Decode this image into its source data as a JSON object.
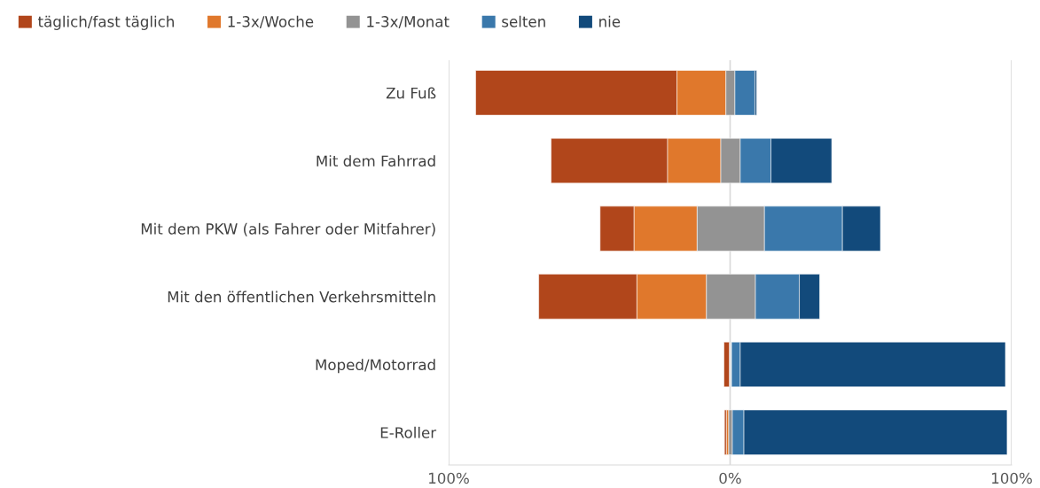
{
  "chart_data": {
    "type": "bar",
    "orientation": "horizontal",
    "categories": [
      "Zu Fuß",
      "Mit dem Fahrrad",
      "Mit dem PKW (als Fahrer oder Mitfahrer)",
      "Mit den öffentlichen Verkehrsmitteln",
      "Moped/Motorrad",
      "E-Roller"
    ],
    "series": [
      {
        "name": "täglich/fast täglich",
        "color": "#b1461b",
        "base": [
          -90.4,
          -63.6,
          -46.2,
          -68.0,
          -2.2,
          -2.0
        ],
        "values": [
          71.5,
          41.4,
          12.1,
          34.9,
          1.9,
          0.7
        ]
      },
      {
        "name": "1-3x/Woche",
        "color": "#e0782c",
        "base": [
          -18.9,
          -22.2,
          -34.1,
          -33.1,
          null,
          -1.3
        ],
        "values": [
          17.4,
          18.9,
          22.4,
          24.7,
          null,
          0.8
        ]
      },
      {
        "name": "1-3x/Monat",
        "color": "#939393",
        "base": [
          -1.5,
          -3.3,
          -11.7,
          -8.4,
          null,
          -0.5
        ],
        "values": [
          3.2,
          6.9,
          23.9,
          17.4,
          null,
          1.3
        ]
      },
      {
        "name": "selten",
        "color": "#3a78ab",
        "base": [
          1.7,
          3.6,
          12.2,
          9.0,
          0.5,
          0.8
        ],
        "values": [
          7.1,
          10.9,
          27.7,
          15.6,
          3.1,
          4.1
        ]
      },
      {
        "name": "nie",
        "color": "#124a7b",
        "base": [
          8.8,
          14.5,
          39.9,
          24.6,
          3.6,
          4.9
        ],
        "values": [
          0.6,
          21.6,
          13.5,
          7.2,
          94.2,
          93.5
        ]
      }
    ],
    "xlim": [
      -100,
      100
    ],
    "xticks": [
      {
        "value": -100,
        "label": "100%"
      },
      {
        "value": 0,
        "label": "0%"
      },
      {
        "value": 100,
        "label": "100%"
      }
    ],
    "grid": "x",
    "legend": "top left"
  }
}
